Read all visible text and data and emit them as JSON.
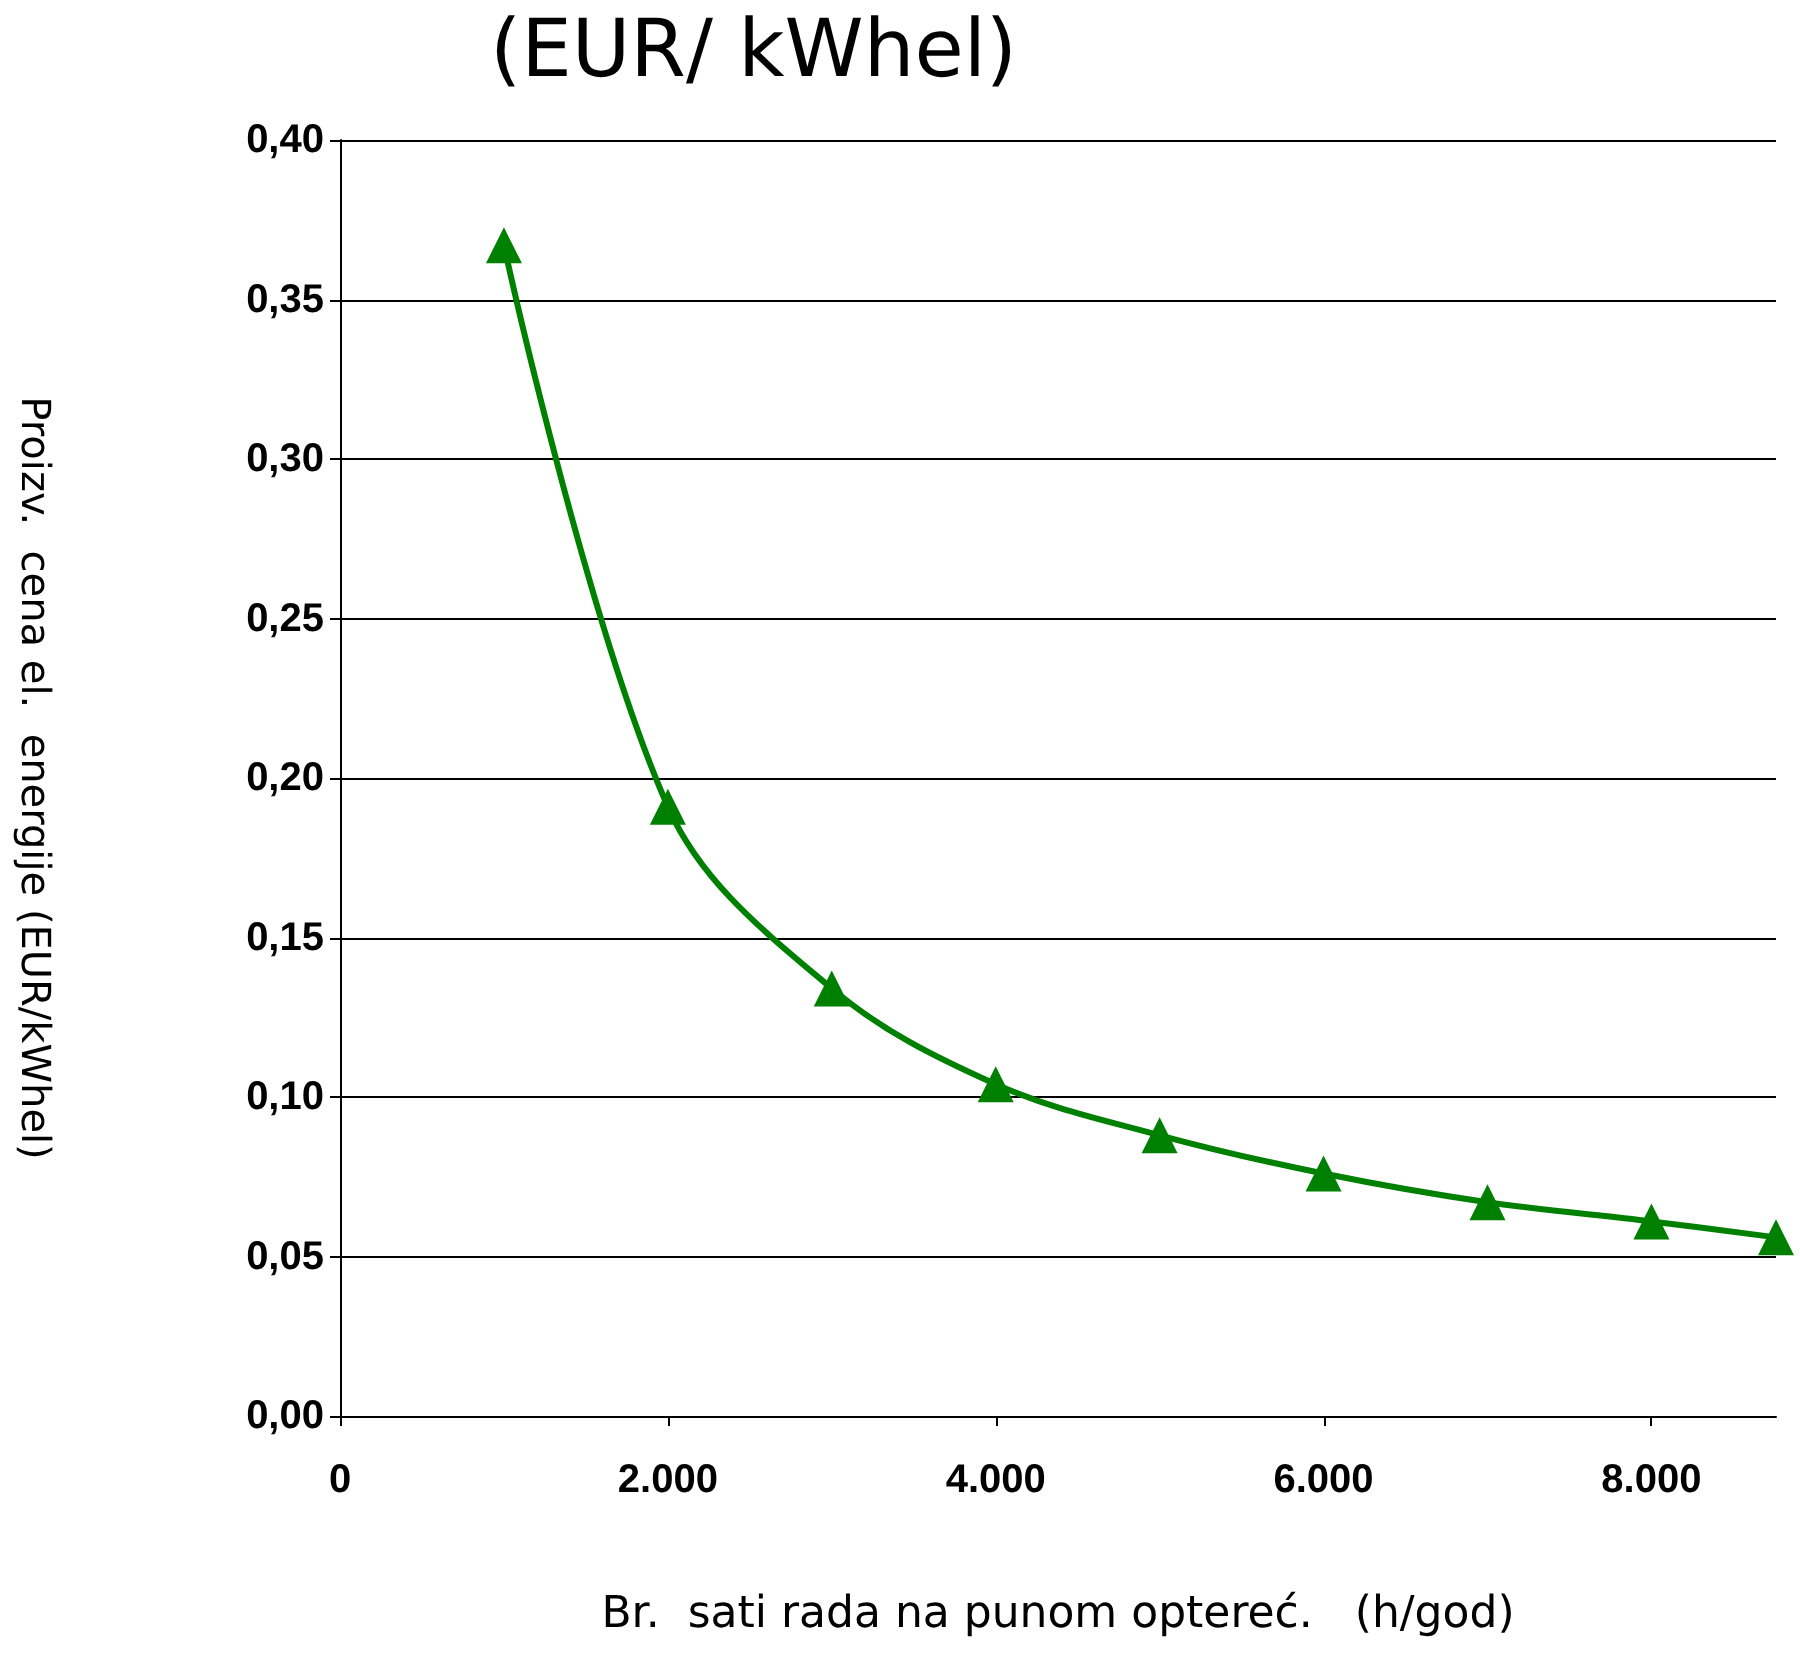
{
  "chart_data": {
    "type": "line",
    "title": "(EUR/ kWhel)",
    "xlabel": "Br.  sati rada na punom optereć.   (h/god)",
    "ylabel": "Proizv.  cena el.  energije (EUR/kWhel)",
    "x": [
      1000,
      2000,
      3000,
      4000,
      5000,
      6000,
      7000,
      8000,
      8760
    ],
    "series": [
      {
        "color": "#008000",
        "values": [
          0.367,
          0.191,
          0.134,
          0.104,
          0.088,
          0.076,
          0.067,
          0.061,
          0.056
        ]
      }
    ],
    "xlim": [
      0,
      8760
    ],
    "xticks": [
      0,
      {
        "value": 2000,
        "label": "2.000"
      },
      {
        "value": 4000,
        "label": "4.000"
      },
      {
        "value": 6000,
        "label": "6.000"
      },
      {
        "value": 8000,
        "label": "8.000"
      }
    ],
    "ylim": [
      0,
      0.4
    ],
    "yticks": [
      {
        "value": 0,
        "label": "0,00"
      },
      {
        "value": 0.05,
        "label": "0,05"
      },
      {
        "value": 0.1,
        "label": "0,10"
      },
      {
        "value": 0.15,
        "label": "0,15"
      },
      {
        "value": 0.2,
        "label": "0,20"
      },
      {
        "value": 0.25,
        "label": "0,25"
      },
      {
        "value": 0.3,
        "label": "0,30"
      },
      {
        "value": 0.35,
        "label": "0,35"
      },
      {
        "value": 0.4,
        "label": "0,40"
      }
    ],
    "grid": "y",
    "marker": "triangle",
    "line_style": "solid"
  }
}
